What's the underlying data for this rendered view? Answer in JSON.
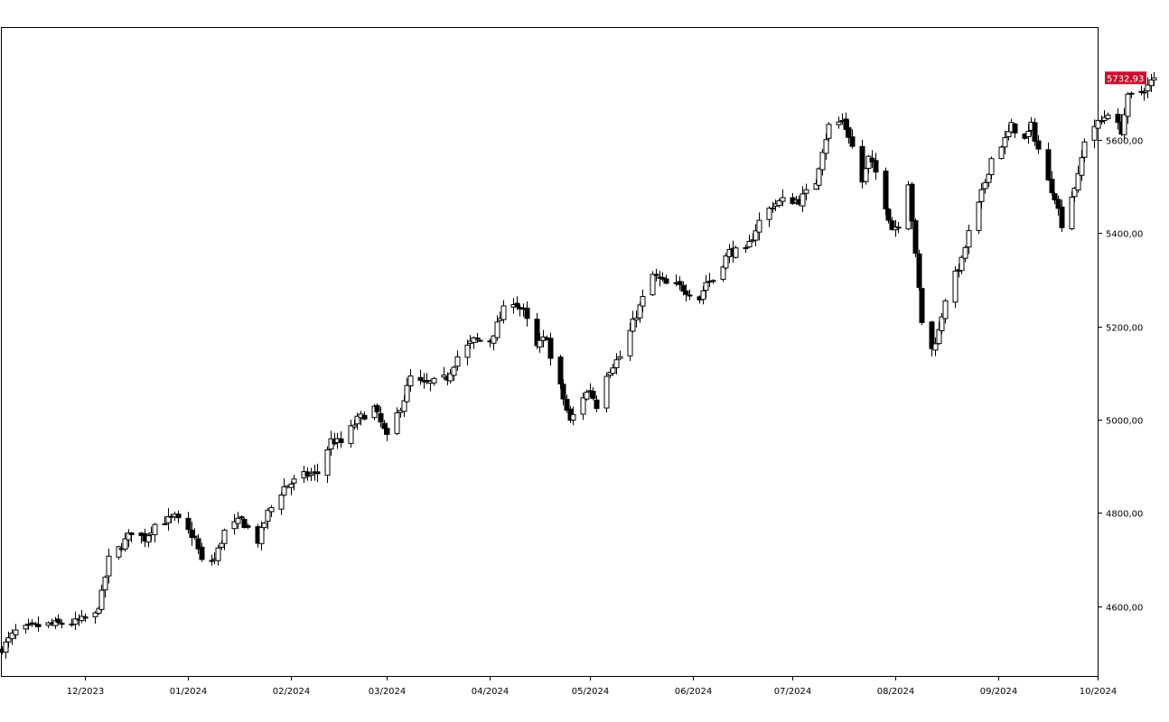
{
  "chart_data": {
    "type": "candlestick",
    "title": "",
    "xlabel": "",
    "ylabel": "",
    "x_range": [
      "2023-11-06",
      "2024-10-01"
    ],
    "ylim": [
      4450,
      5840
    ],
    "y_ticks": [
      4600,
      4800,
      5000,
      5200,
      5400,
      5600
    ],
    "y_tick_labels": [
      "4600,00",
      "4800,00",
      "5000,00",
      "5200,00",
      "5400,00",
      "5600,00"
    ],
    "x_ticks": [
      "2023-12-01",
      "2024-01-01",
      "2024-02-01",
      "2024-03-01",
      "2024-04-01",
      "2024-05-01",
      "2024-06-01",
      "2024-07-01",
      "2024-08-01",
      "2024-09-01",
      "2024-10-01"
    ],
    "x_tick_labels": [
      "12/2023",
      "01/2024",
      "02/2024",
      "03/2024",
      "04/2024",
      "05/2024",
      "06/2024",
      "07/2024",
      "08/2024",
      "09/2024",
      "10/2024"
    ],
    "last_value": 5732.93,
    "last_value_label": "5732,93",
    "colors": {
      "up_fill": "#ffffff",
      "down_fill": "#000000",
      "wick": "#000000",
      "last_value_bg": "#c8102e"
    },
    "grid": false,
    "anchors": [
      [
        "2023-11-06",
        4510
      ],
      [
        "2023-11-10",
        4545
      ],
      [
        "2023-11-15",
        4555
      ],
      [
        "2023-11-20",
        4560
      ],
      [
        "2023-11-28",
        4565
      ],
      [
        "2023-12-04",
        4580
      ],
      [
        "2023-12-06",
        4625
      ],
      [
        "2023-12-08",
        4700
      ],
      [
        "2023-12-12",
        4730
      ],
      [
        "2023-12-15",
        4760
      ],
      [
        "2023-12-19",
        4745
      ],
      [
        "2023-12-22",
        4775
      ],
      [
        "2023-12-28",
        4790
      ],
      [
        "2024-01-03",
        4745
      ],
      [
        "2024-01-05",
        4695
      ],
      [
        "2024-01-09",
        4700
      ],
      [
        "2024-01-12",
        4760
      ],
      [
        "2024-01-17",
        4785
      ],
      [
        "2024-01-22",
        4740
      ],
      [
        "2024-01-25",
        4800
      ],
      [
        "2024-01-30",
        4855
      ],
      [
        "2024-02-05",
        4880
      ],
      [
        "2024-02-09",
        4885
      ],
      [
        "2024-02-13",
        4955
      ],
      [
        "2024-02-16",
        4950
      ],
      [
        "2024-02-21",
        5000
      ],
      [
        "2024-02-26",
        5025
      ],
      [
        "2024-03-01",
        4960
      ],
      [
        "2024-03-06",
        5045
      ],
      [
        "2024-03-08",
        5090
      ],
      [
        "2024-03-12",
        5075
      ],
      [
        "2024-03-15",
        5080
      ],
      [
        "2024-03-19",
        5090
      ],
      [
        "2024-03-22",
        5135
      ],
      [
        "2024-03-27",
        5170
      ],
      [
        "2024-04-01",
        5170
      ],
      [
        "2024-04-05",
        5235
      ],
      [
        "2024-04-08",
        5255
      ],
      [
        "2024-04-11",
        5230
      ],
      [
        "2024-04-15",
        5155
      ],
      [
        "2024-04-18",
        5180
      ],
      [
        "2024-04-19",
        5130
      ],
      [
        "2024-04-22",
        5070
      ],
      [
        "2024-04-25",
        4995
      ],
      [
        "2024-04-29",
        5050
      ],
      [
        "2024-05-01",
        5065
      ],
      [
        "2024-05-03",
        5030
      ],
      [
        "2024-05-06",
        5100
      ],
      [
        "2024-05-10",
        5135
      ],
      [
        "2024-05-15",
        5225
      ],
      [
        "2024-05-20",
        5310
      ],
      [
        "2024-05-24",
        5290
      ],
      [
        "2024-05-28",
        5285
      ],
      [
        "2024-06-03",
        5260
      ],
      [
        "2024-06-05",
        5295
      ],
      [
        "2024-06-07",
        5300
      ],
      [
        "2024-06-12",
        5360
      ],
      [
        "2024-06-17",
        5360
      ],
      [
        "2024-06-21",
        5425
      ],
      [
        "2024-06-25",
        5460
      ],
      [
        "2024-06-28",
        5470
      ],
      [
        "2024-07-03",
        5470
      ],
      [
        "2024-07-08",
        5510
      ],
      [
        "2024-07-10",
        5580
      ],
      [
        "2024-07-12",
        5630
      ],
      [
        "2024-07-16",
        5640
      ],
      [
        "2024-07-18",
        5610
      ],
      [
        "2024-07-22",
        5510
      ],
      [
        "2024-07-24",
        5560
      ],
      [
        "2024-07-26",
        5530
      ],
      [
        "2024-07-29",
        5460
      ],
      [
        "2024-07-31",
        5410
      ],
      [
        "2024-08-02",
        5420
      ],
      [
        "2024-08-05",
        5510
      ],
      [
        "2024-08-07",
        5350
      ],
      [
        "2024-08-09",
        5210
      ],
      [
        "2024-08-12",
        5150
      ],
      [
        "2024-08-14",
        5190
      ],
      [
        "2024-08-16",
        5260
      ],
      [
        "2024-08-19",
        5310
      ],
      [
        "2024-08-21",
        5340
      ],
      [
        "2024-08-23",
        5400
      ],
      [
        "2024-08-26",
        5460
      ],
      [
        "2024-08-28",
        5510
      ],
      [
        "2024-08-30",
        5560
      ],
      [
        "2024-09-03",
        5600
      ],
      [
        "2024-09-05",
        5630
      ],
      [
        "2024-09-09",
        5600
      ],
      [
        "2024-09-11",
        5630
      ],
      [
        "2024-09-13",
        5580
      ],
      [
        "2024-09-16",
        5510
      ],
      [
        "2024-09-18",
        5480
      ],
      [
        "2024-09-20",
        5420
      ],
      [
        "2024-09-23",
        5480
      ],
      [
        "2024-09-25",
        5520
      ],
      [
        "2024-09-27",
        5600
      ],
      [
        "2024-09-30",
        5630
      ],
      [
        "2024-10-02",
        5640
      ],
      [
        "2024-10-04",
        5660
      ],
      [
        "2024-10-08",
        5620
      ],
      [
        "2024-10-10",
        5690
      ],
      [
        "2024-10-14",
        5705
      ],
      [
        "2024-10-16",
        5715
      ],
      [
        "2024-10-18",
        5733
      ]
    ]
  }
}
